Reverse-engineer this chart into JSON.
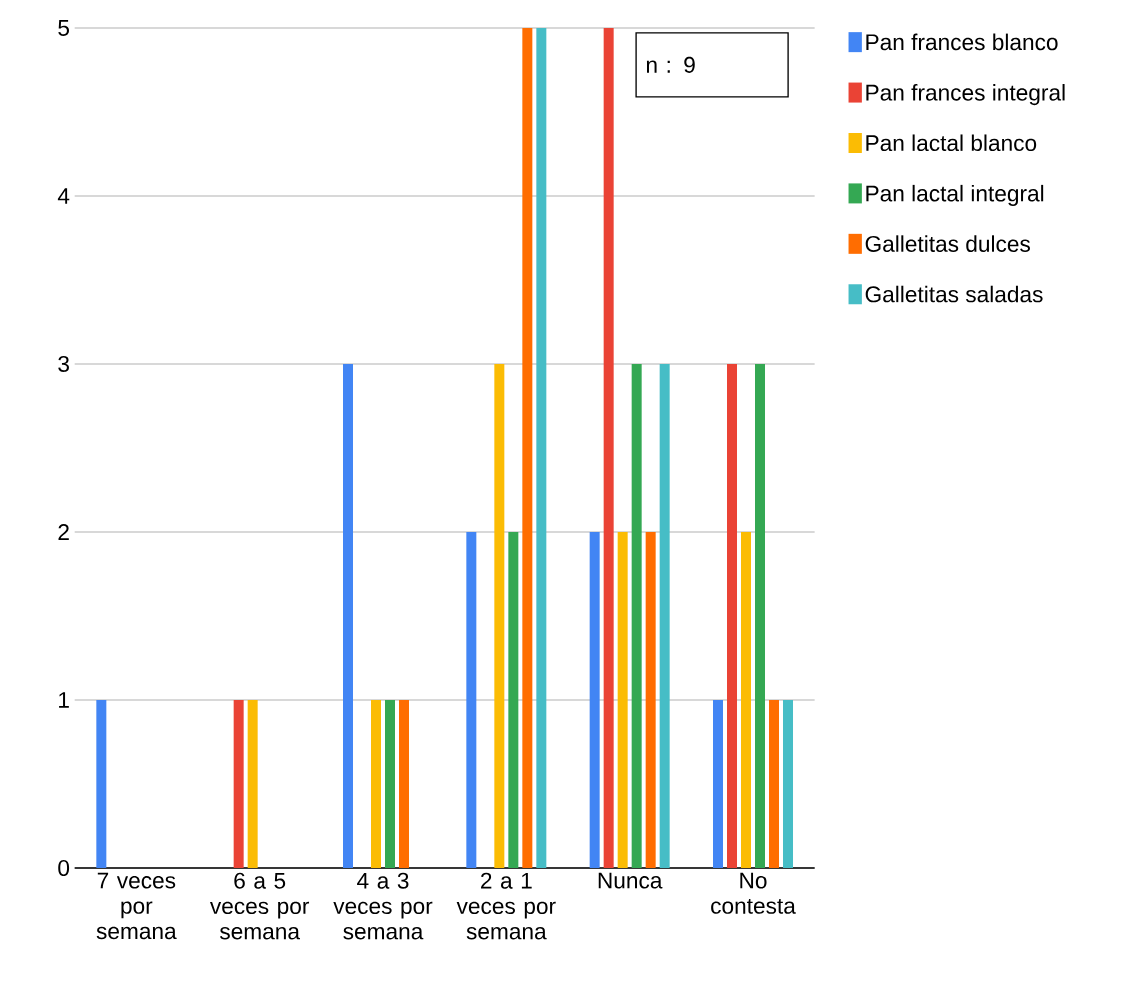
{
  "chart_data": {
    "type": "bar",
    "categories": [
      "7 veces por semana",
      "6 a 5 veces por semana",
      "4 a 3 veces por semana",
      "2 a 1 veces por semana",
      "Nunca",
      "No contesta"
    ],
    "series": [
      {
        "name": "Pan frances blanco",
        "color": "#4285f4",
        "values": [
          1,
          0,
          3,
          2,
          2,
          1
        ]
      },
      {
        "name": "Pan frances integral",
        "color": "#ea4335",
        "values": [
          0,
          1,
          0,
          0,
          5,
          3
        ]
      },
      {
        "name": "Pan lactal blanco",
        "color": "#fbbc04",
        "values": [
          0,
          1,
          1,
          3,
          2,
          2
        ]
      },
      {
        "name": "Pan lactal integral",
        "color": "#34a853",
        "values": [
          0,
          0,
          1,
          2,
          3,
          3
        ]
      },
      {
        "name": "Galletitas dulces",
        "color": "#ff6d01",
        "values": [
          0,
          0,
          1,
          5,
          2,
          1
        ]
      },
      {
        "name": "Galletitas saladas",
        "color": "#46bdc6",
        "values": [
          0,
          0,
          0,
          5,
          3,
          1
        ]
      }
    ],
    "ylim": [
      0,
      5
    ],
    "yticks": [
      0,
      1,
      2,
      3,
      4,
      5
    ],
    "grid": "y",
    "legend": "top right",
    "annotations": [
      "n : 9"
    ]
  }
}
